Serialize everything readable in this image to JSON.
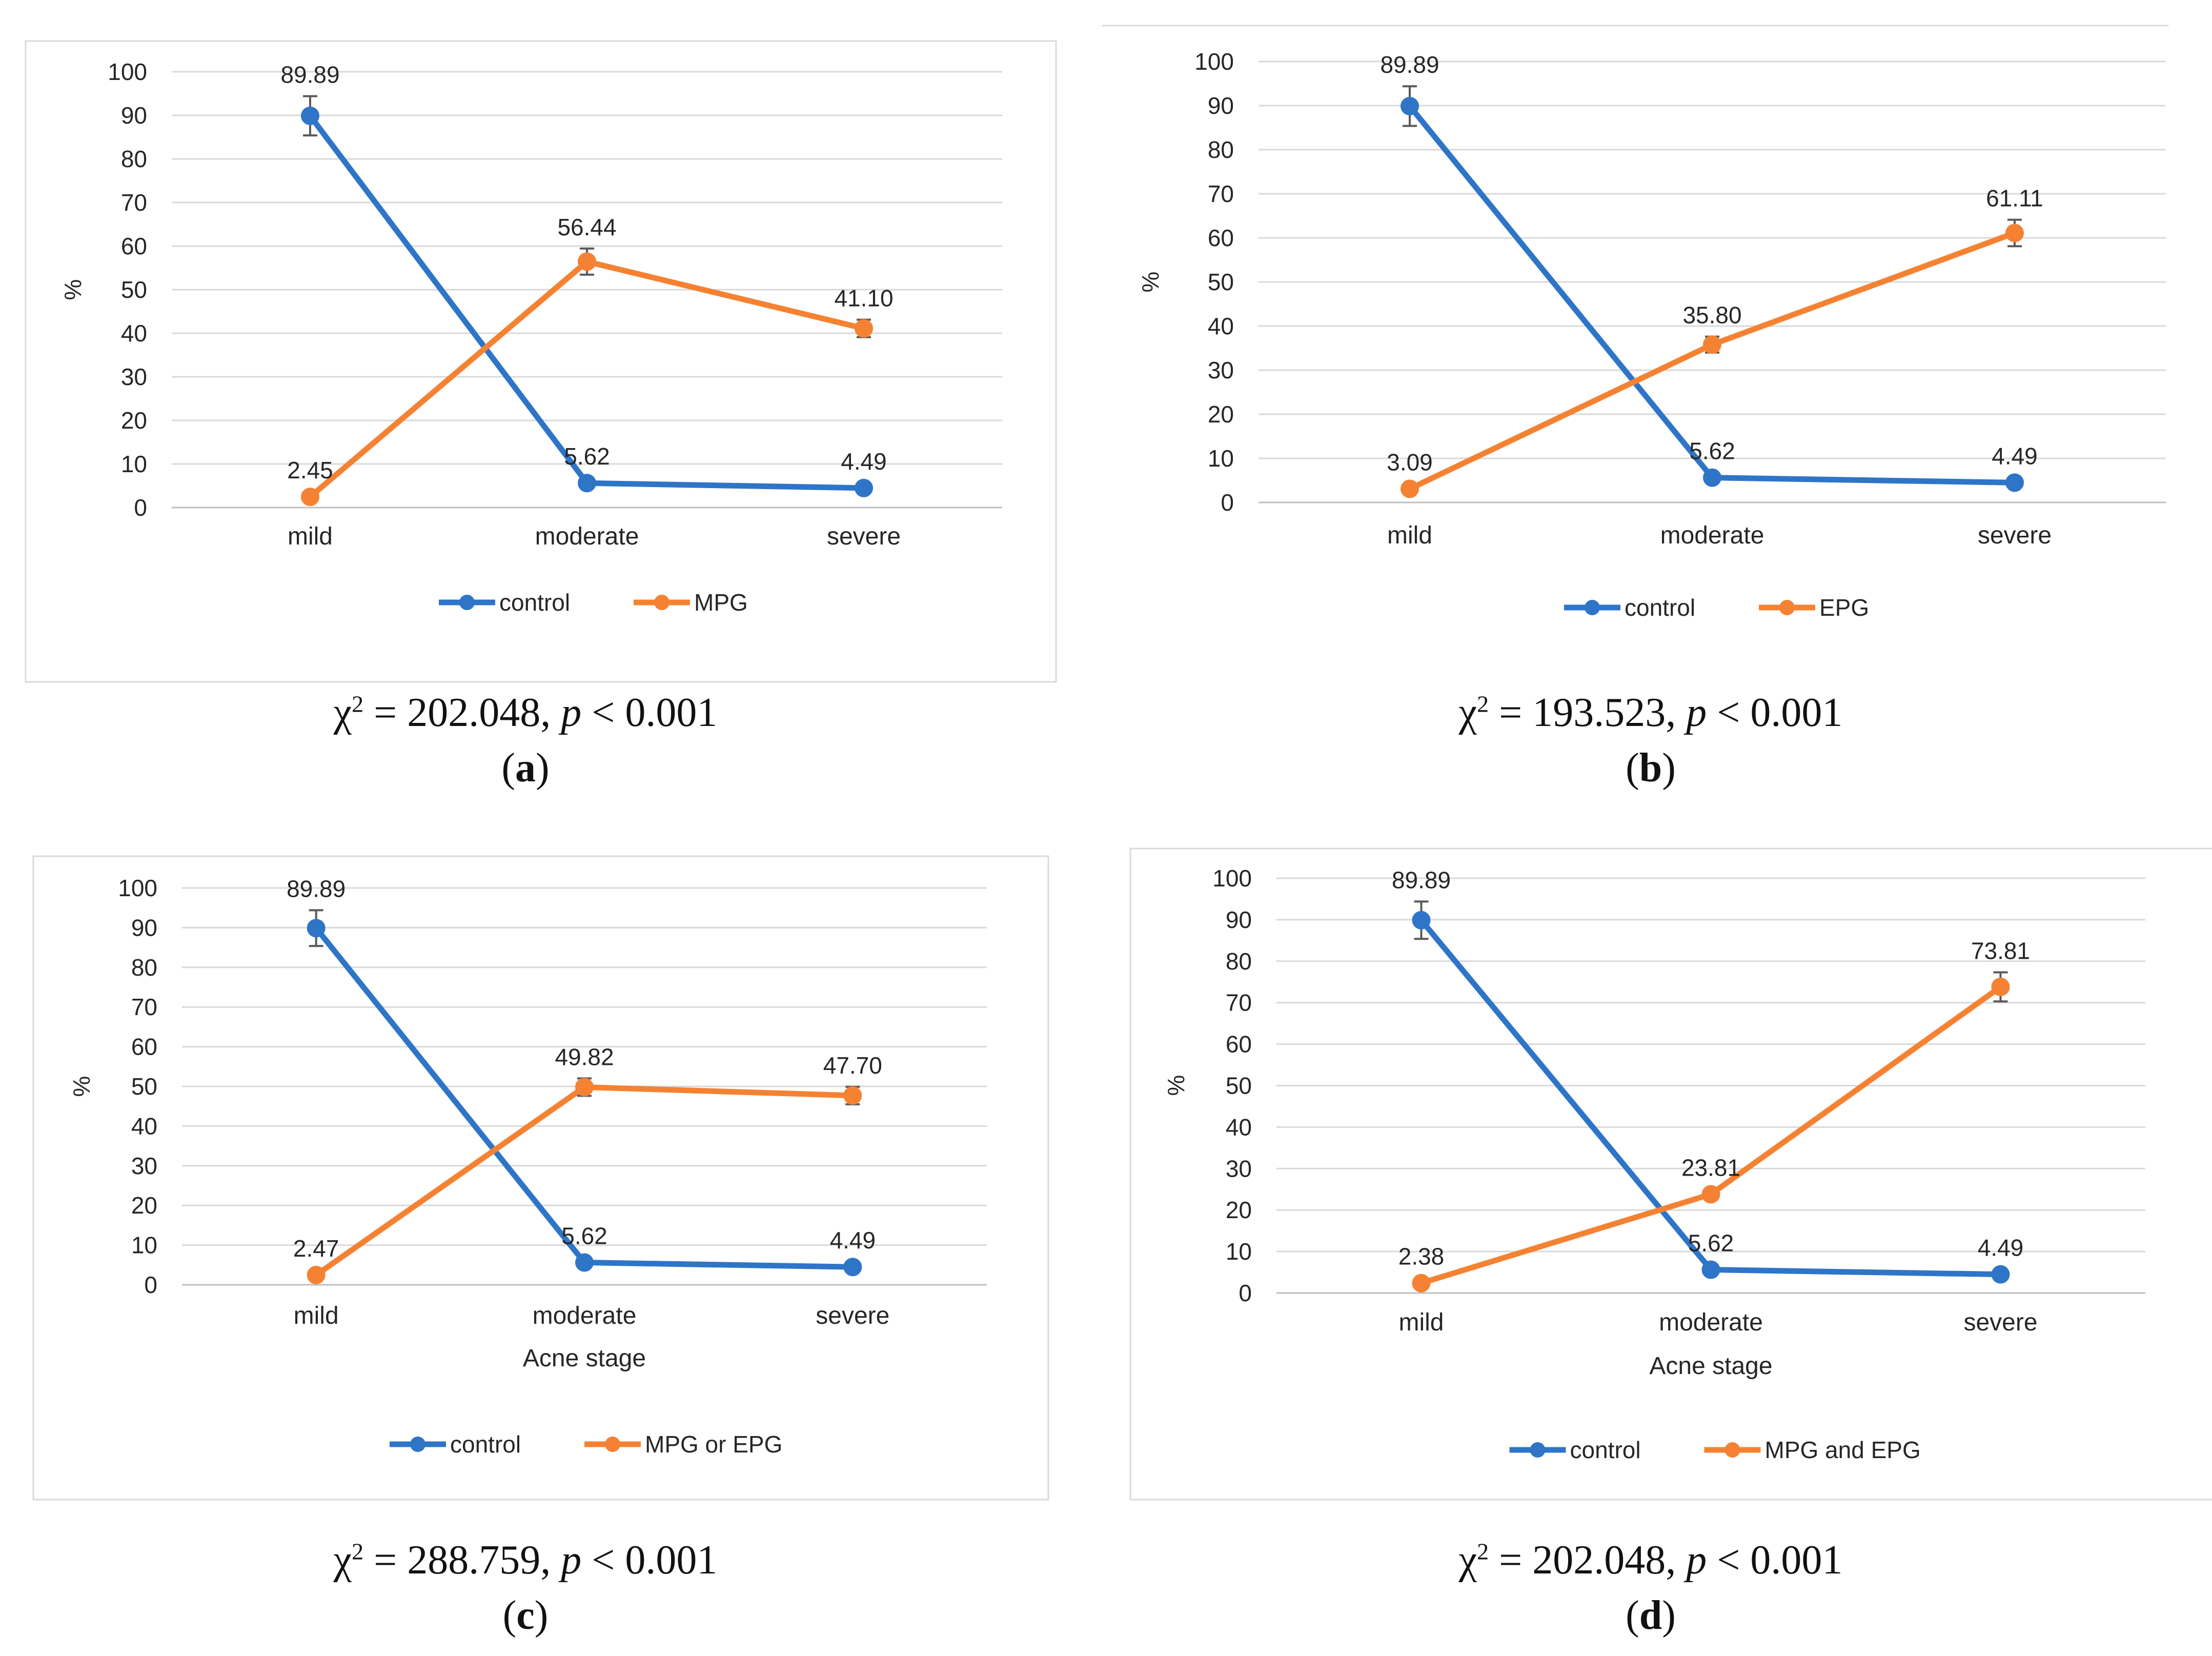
{
  "colors": {
    "control": "#2E75C8",
    "treated": "#F58232",
    "grid": "#D9D9D9",
    "frame": "#D9D9D9",
    "errorbar": "#595959"
  },
  "chart_data": [
    {
      "type": "line",
      "panel": "a",
      "categories": [
        "mild",
        "moderate",
        "severe"
      ],
      "ylim": [
        0,
        100
      ],
      "yticks": [
        0,
        10,
        20,
        30,
        40,
        50,
        60,
        70,
        80,
        90,
        100
      ],
      "ylabel": "%",
      "xlabel": "",
      "series": [
        {
          "name": "control",
          "values": [
            89.89,
            5.62,
            4.49
          ],
          "labels": [
            "89.89",
            "5.62",
            "4.49"
          ],
          "errors": [
            4.5,
            0,
            0
          ]
        },
        {
          "name": "MPG",
          "values": [
            2.45,
            56.44,
            41.1
          ],
          "labels": [
            "2.45",
            "56.44",
            "41.10"
          ],
          "errors": [
            0,
            3.0,
            2.0
          ]
        }
      ],
      "legend": [
        "control",
        "MPG"
      ],
      "caption": {
        "stat": "202.048",
        "letter": "a"
      }
    },
    {
      "type": "line",
      "panel": "b",
      "categories": [
        "mild",
        "moderate",
        "severe"
      ],
      "ylim": [
        0,
        100
      ],
      "yticks": [
        0,
        10,
        20,
        30,
        40,
        50,
        60,
        70,
        80,
        90,
        100
      ],
      "ylabel": "%",
      "xlabel": "",
      "series": [
        {
          "name": "control",
          "values": [
            89.89,
            5.62,
            4.49
          ],
          "labels": [
            "89.89",
            "5.62",
            "4.49"
          ],
          "errors": [
            4.5,
            0,
            0
          ]
        },
        {
          "name": "EPG",
          "values": [
            3.09,
            35.8,
            61.11
          ],
          "labels": [
            "3.09",
            "35.80",
            "61.11"
          ],
          "errors": [
            0,
            1.8,
            3.0
          ]
        }
      ],
      "legend": [
        "control",
        "EPG"
      ],
      "caption": {
        "stat": "193.523",
        "letter": "b"
      }
    },
    {
      "type": "line",
      "panel": "c",
      "categories": [
        "mild",
        "moderate",
        "severe"
      ],
      "ylim": [
        0,
        100
      ],
      "yticks": [
        0,
        10,
        20,
        30,
        40,
        50,
        60,
        70,
        80,
        90,
        100
      ],
      "ylabel": "%",
      "xlabel": "Acne stage",
      "series": [
        {
          "name": "control",
          "values": [
            89.89,
            5.62,
            4.49
          ],
          "labels": [
            "89.89",
            "5.62",
            "4.49"
          ],
          "errors": [
            4.5,
            0,
            0
          ]
        },
        {
          "name": "MPG or EPG",
          "values": [
            2.47,
            49.82,
            47.7
          ],
          "labels": [
            "2.47",
            "49.82",
            "47.70"
          ],
          "errors": [
            0,
            2.2,
            2.2
          ]
        }
      ],
      "legend": [
        "control",
        "MPG or EPG"
      ],
      "caption": {
        "stat": "288.759",
        "letter": "c"
      }
    },
    {
      "type": "line",
      "panel": "d",
      "categories": [
        "mild",
        "moderate",
        "severe"
      ],
      "ylim": [
        0,
        100
      ],
      "yticks": [
        0,
        10,
        20,
        30,
        40,
        50,
        60,
        70,
        80,
        90,
        100
      ],
      "ylabel": "%",
      "xlabel": "Acne stage",
      "series": [
        {
          "name": "control",
          "values": [
            89.89,
            5.62,
            4.49
          ],
          "labels": [
            "89.89",
            "5.62",
            "4.49"
          ],
          "errors": [
            4.5,
            0,
            0
          ]
        },
        {
          "name": "MPG and EPG",
          "values": [
            2.38,
            23.81,
            73.81
          ],
          "labels": [
            "2.38",
            "23.81",
            "73.81"
          ],
          "errors": [
            0,
            1.2,
            3.5
          ]
        }
      ],
      "legend": [
        "control",
        "MPG and EPG"
      ],
      "caption": {
        "stat": "202.048",
        "letter": "d"
      }
    }
  ],
  "caption_parts": {
    "chi": "χ",
    "sup": "2",
    "eq": " = ",
    "p_sep": ", ",
    "p": "p",
    "p_rel": " < 0.001",
    "open": "(",
    "close": ")"
  }
}
